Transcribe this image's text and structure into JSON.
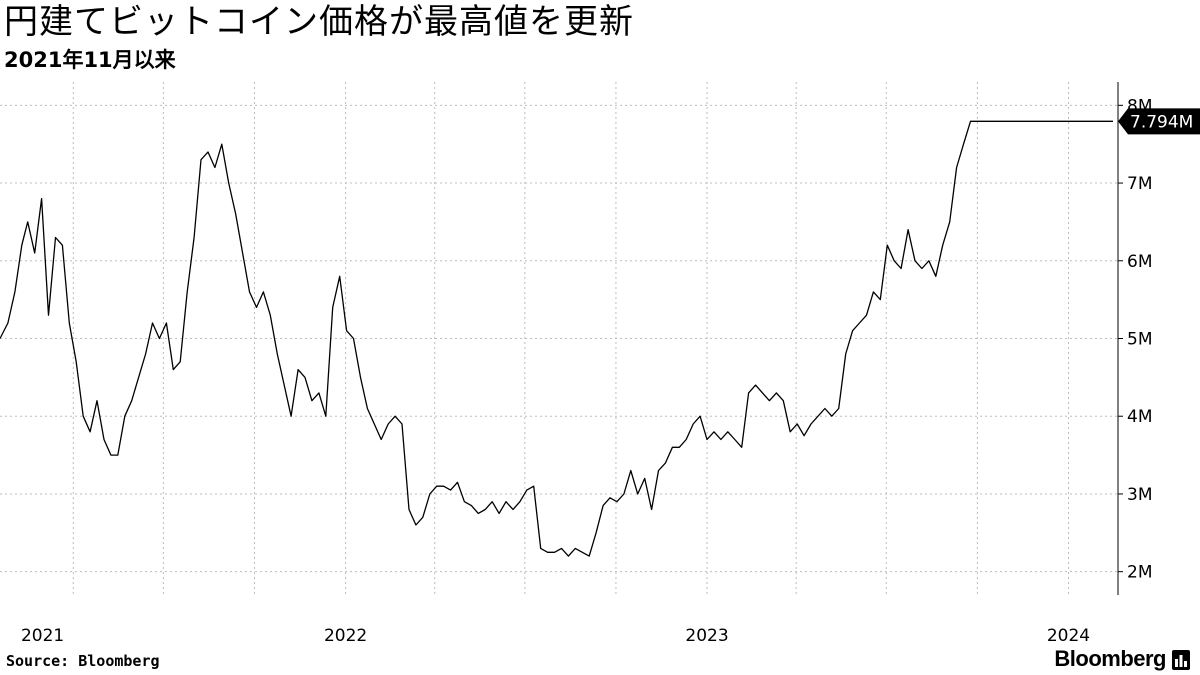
{
  "header": {
    "title": "円建てビットコイン価格が最高値を更新",
    "subtitle": "2021年11月以来"
  },
  "footer": {
    "source": "Source:  Bloomberg",
    "brand": "Bloomberg"
  },
  "chart_data": {
    "type": "line",
    "title": "円建てビットコイン価格が最高値を更新",
    "subtitle": "2021年11月以来",
    "ylim": [
      1700000,
      8300000
    ],
    "y_ticks": [
      2000000,
      3000000,
      4000000,
      5000000,
      6000000,
      7000000,
      8000000
    ],
    "y_tick_labels": [
      "2M",
      "3M",
      "4M",
      "5M",
      "6M",
      "7M",
      "8M"
    ],
    "xlim": [
      "2021-01-17",
      "2024-02-20"
    ],
    "x_tick_labels": [
      "2021",
      "2022",
      "2023",
      "2024"
    ],
    "x_tick_dates": [
      "2021-03-01",
      "2022-01-01",
      "2023-01-01",
      "2024-01-01"
    ],
    "grid": true,
    "last_value_label": "7.794M",
    "last_value": 7794000,
    "line_color": "#000000",
    "label_color": "#000000",
    "series": [
      {
        "x": [
          "2021-01-17",
          "2021-01-25",
          "2021-02-01",
          "2021-02-08",
          "2021-02-14",
          "2021-02-21",
          "2021-02-28",
          "2021-03-07",
          "2021-03-14",
          "2021-03-21",
          "2021-03-28",
          "2021-04-04",
          "2021-04-11",
          "2021-04-18",
          "2021-04-25",
          "2021-05-02",
          "2021-05-09",
          "2021-05-16",
          "2021-05-23",
          "2021-05-30",
          "2021-06-06",
          "2021-06-13",
          "2021-06-20",
          "2021-06-27",
          "2021-07-04",
          "2021-07-11",
          "2021-07-18",
          "2021-07-25",
          "2021-08-01",
          "2021-08-08",
          "2021-08-15",
          "2021-08-22",
          "2021-08-29",
          "2021-09-05",
          "2021-09-12",
          "2021-09-19",
          "2021-09-26",
          "2021-10-03",
          "2021-10-10",
          "2021-10-17",
          "2021-10-24",
          "2021-10-31",
          "2021-11-07",
          "2021-11-14",
          "2021-11-21",
          "2021-11-28",
          "2021-12-05",
          "2021-12-12",
          "2021-12-19",
          "2021-12-26",
          "2022-01-02",
          "2022-01-09",
          "2022-01-16",
          "2022-01-23",
          "2022-01-30",
          "2022-02-06",
          "2022-02-13",
          "2022-02-20",
          "2022-02-27",
          "2022-03-06",
          "2022-03-13",
          "2022-03-20",
          "2022-03-27",
          "2022-04-03",
          "2022-04-10",
          "2022-04-17",
          "2022-04-24",
          "2022-05-01",
          "2022-05-08",
          "2022-05-15",
          "2022-05-22",
          "2022-05-29",
          "2022-06-05",
          "2022-06-12",
          "2022-06-19",
          "2022-06-26",
          "2022-07-03",
          "2022-07-10",
          "2022-07-17",
          "2022-07-24",
          "2022-07-31",
          "2022-08-07",
          "2022-08-14",
          "2022-08-21",
          "2022-08-28",
          "2022-09-04",
          "2022-09-11",
          "2022-09-18",
          "2022-09-25",
          "2022-10-02",
          "2022-10-09",
          "2022-10-16",
          "2022-10-23",
          "2022-10-30",
          "2022-11-06",
          "2022-11-13",
          "2022-11-20",
          "2022-11-27",
          "2022-12-04",
          "2022-12-11",
          "2022-12-18",
          "2022-12-25",
          "2023-01-01",
          "2023-01-08",
          "2023-01-15",
          "2023-01-22",
          "2023-01-29",
          "2023-02-05",
          "2023-02-12",
          "2023-02-19",
          "2023-02-26",
          "2023-03-05",
          "2023-03-12",
          "2023-03-19",
          "2023-03-26",
          "2023-04-02",
          "2023-04-09",
          "2023-04-16",
          "2023-04-23",
          "2023-04-30",
          "2023-05-07",
          "2023-05-14",
          "2023-05-21",
          "2023-05-28",
          "2023-06-04",
          "2023-06-11",
          "2023-06-18",
          "2023-06-25",
          "2023-07-02",
          "2023-07-09",
          "2023-07-16",
          "2023-07-23",
          "2023-07-30",
          "2023-08-06",
          "2023-08-13",
          "2023-08-20",
          "2023-08-27",
          "2023-09-03",
          "2023-09-10",
          "2023-09-17",
          "2023-09-24",
          "2023-10-01",
          "2023-10-08",
          "2023-10-15",
          "2023-10-22",
          "2023-10-29",
          "2023-11-05",
          "2023-11-12",
          "2023-11-19",
          "2023-11-26",
          "2023-12-03",
          "2023-12-10",
          "2023-12-17",
          "2023-12-24",
          "2023-12-31",
          "2024-01-07",
          "2024-01-14",
          "2024-01-21",
          "2024-01-28",
          "2024-02-04",
          "2024-02-11",
          "2024-02-15"
        ],
        "values": [
          5000000,
          5200000,
          5600000,
          6200000,
          6500000,
          6100000,
          6800000,
          5300000,
          6300000,
          6200000,
          5200000,
          4700000,
          4000000,
          3800000,
          4200000,
          3700000,
          3500000,
          3500000,
          4000000,
          4200000,
          4500000,
          4800000,
          5200000,
          5000000,
          5200000,
          4600000,
          4700000,
          5600000,
          6300000,
          7300000,
          7400000,
          7200000,
          7500000,
          7000000,
          6600000,
          6100000,
          5600000,
          5400000,
          5600000,
          5300000,
          4800000,
          4400000,
          4000000,
          4600000,
          4500000,
          4200000,
          4300000,
          4000000,
          5400000,
          5800000,
          5100000,
          5000000,
          4500000,
          4100000,
          3900000,
          3700000,
          3900000,
          4000000,
          3900000,
          2800000,
          2600000,
          2700000,
          3000000,
          3100000,
          3100000,
          3050000,
          3150000,
          2900000,
          2850000,
          2750000,
          2800000,
          2900000,
          2750000,
          2900000,
          2800000,
          2900000,
          3050000,
          3100000,
          2300000,
          2250000,
          2250000,
          2300000,
          2200000,
          2300000,
          2250000,
          2200000,
          2500000,
          2850000,
          2950000,
          2900000,
          3000000,
          3300000,
          3000000,
          3200000,
          2800000,
          3300000,
          3400000,
          3600000,
          3600000,
          3700000,
          3900000,
          4000000,
          3700000,
          3800000,
          3700000,
          3800000,
          3700000,
          3600000,
          4300000,
          4400000,
          4300000,
          4200000,
          4300000,
          4200000,
          3800000,
          3900000,
          3750000,
          3900000,
          4000000,
          4100000,
          4000000,
          4100000,
          4800000,
          5100000,
          5200000,
          5300000,
          5600000,
          5500000,
          6200000,
          6000000,
          5900000,
          6400000,
          6000000,
          5900000,
          6000000,
          5800000,
          6200000,
          6500000,
          7200000,
          7500000,
          7794000,
          7794000,
          7794000,
          7794000,
          7794000,
          7794000,
          7794000,
          7794000,
          7794000,
          7794000,
          7794000,
          7794000,
          7794000,
          7794000,
          7794000,
          7794000,
          7794000,
          7794000,
          7794000,
          7794000,
          7794000,
          7794000
        ]
      }
    ]
  }
}
